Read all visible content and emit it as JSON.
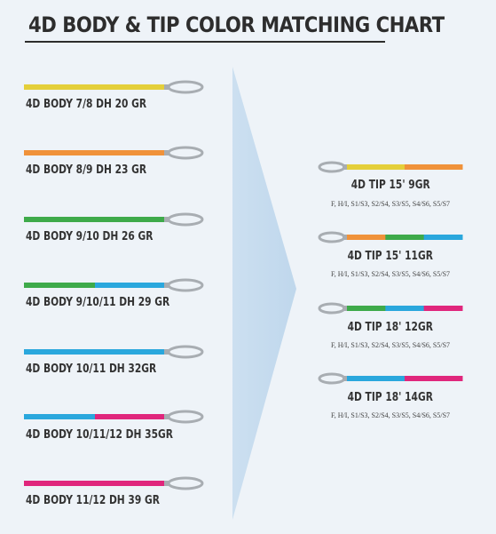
{
  "title": "4D BODY & TIP COLOR MATCHING CHART",
  "colors": {
    "yellow": "#e4cf3a",
    "orange": "#f0923a",
    "green": "#3eaa4a",
    "blue": "#2aa7dd",
    "magenta": "#e0267c",
    "loop": "#a8adb2"
  },
  "bodies": [
    {
      "label": "4D BODY 7/8 DH 20 GR",
      "segments": [
        "yellow"
      ]
    },
    {
      "label": "4D BODY 8/9 DH 23 GR",
      "segments": [
        "orange"
      ]
    },
    {
      "label": "4D BODY 9/10 DH 26 GR",
      "segments": [
        "green"
      ]
    },
    {
      "label": "4D BODY 9/10/11 DH 29 GR",
      "segments": [
        "green",
        "blue"
      ]
    },
    {
      "label": "4D BODY 10/11 DH 32GR",
      "segments": [
        "blue"
      ]
    },
    {
      "label": "4D BODY 10/11/12 DH 35GR",
      "segments": [
        "blue",
        "magenta"
      ]
    },
    {
      "label": "4D BODY 11/12 DH 39 GR",
      "segments": [
        "magenta"
      ]
    }
  ],
  "tips": [
    {
      "label": "4D TIP 15' 9GR",
      "compat": "F, H/I, S1/S3, S2/S4, S3/S5, S4/S6, S5/S7",
      "segments": [
        "yellow",
        "orange"
      ]
    },
    {
      "label": "4D TIP 15' 11GR",
      "compat": "F, H/I, S1/S3, S2/S4, S3/S5, S4/S6, S5/S7",
      "segments": [
        "orange",
        "green",
        "blue"
      ]
    },
    {
      "label": "4D TIP 18' 12GR",
      "compat": "F, H/I, S1/S3, S2/S4, S3/S5, S4/S6, S5/S7",
      "segments": [
        "green",
        "blue",
        "magenta"
      ]
    },
    {
      "label": "4D TIP 18' 14GR",
      "compat": "F, H/I, S1/S3, S2/S4, S3/S5, S4/S6, S5/S7",
      "segments": [
        "blue",
        "magenta"
      ]
    }
  ]
}
